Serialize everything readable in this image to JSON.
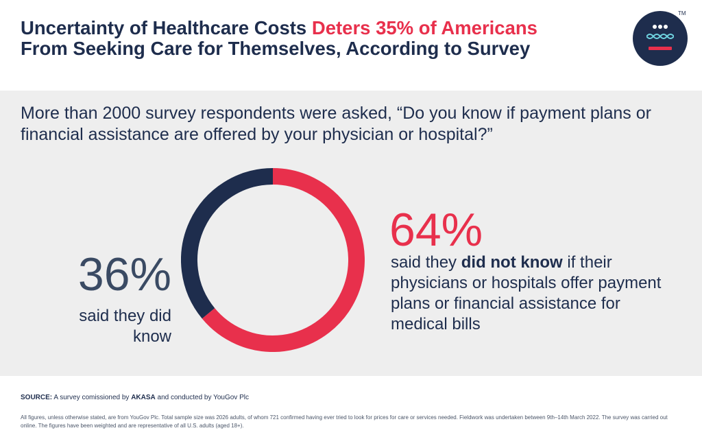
{
  "title": {
    "part1": "Uncertainty of Healthcare Costs ",
    "highlight": "Deters 35% of Americans",
    "part2": " From Seeking Care for Themselves, According to Survey"
  },
  "logo": {
    "tm": "TM"
  },
  "question": "More than 2000 survey respondents were asked, “Do you know if payment plans or financial assistance are offered by your physician or hospital?”",
  "colors": {
    "navy": "#1e2d4d",
    "red": "#e8304c",
    "panel": "#eeeeee"
  },
  "chart_data": {
    "type": "pie",
    "style": "donut",
    "categories": [
      "did know",
      "did not know"
    ],
    "values": [
      36,
      64
    ],
    "units": "%",
    "colors": [
      "#1e2d4d",
      "#e8304c"
    ]
  },
  "stats": {
    "known": {
      "value": "36%",
      "label": "said they did know"
    },
    "unknown": {
      "value": "64%",
      "label_pre": "said they ",
      "label_bold": "did not know",
      "label_post": " if their physicians or hospitals offer payment plans or financial assistance for medical bills"
    }
  },
  "source": {
    "label": "SOURCE:",
    "text_pre": " A survey comissioned by ",
    "org": "AKASA",
    "text_post": " and conducted by YouGov Plc"
  },
  "footnote": "All figures, unless otherwise stated, are from YouGov Plc. Total sample size was 2026 adults, of whom 721 confirmed having ever tried to look for prices for care or services needed. Fieldwork was undertaken between 9th–14th March 2022. The survey was carried out online. The figures have been weighted and are representative of all U.S. adults (aged 18+)."
}
